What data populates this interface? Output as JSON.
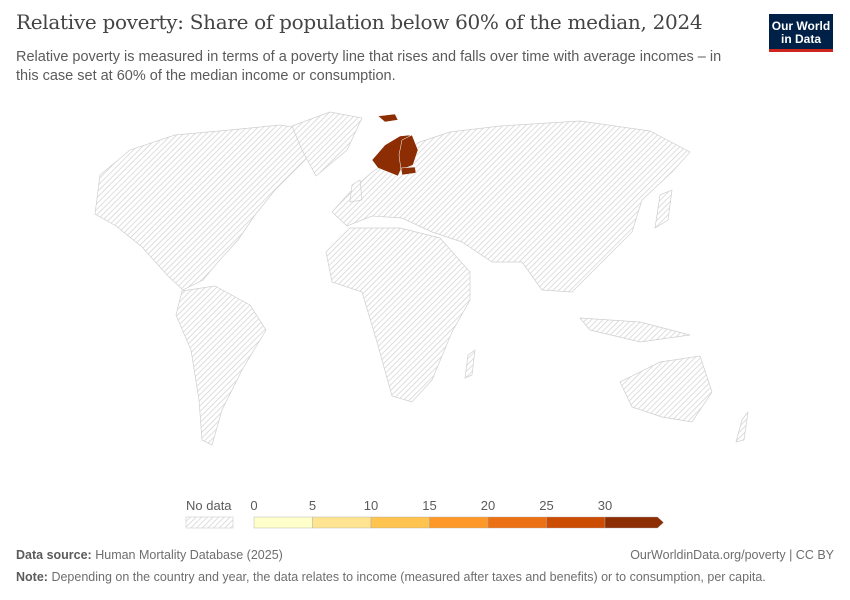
{
  "header": {
    "title": "Relative poverty: Share of population below 60% of the median, 2024",
    "subtitle": "Relative poverty is measured in terms of a poverty line that rises and falls over time with average incomes – in this case set at 60% of the median income or consumption."
  },
  "logo": {
    "text": "Our World in Data",
    "bg": "#002147",
    "accent": "#ce261e"
  },
  "map": {
    "highlighted_countries": [
      "Norway",
      "Sweden",
      "Finland",
      "Estonia"
    ],
    "highlight_color": "#8c2d04",
    "no_data_style": "hatched"
  },
  "legend": {
    "no_data_label": "No data",
    "ticks": [
      "0",
      "5",
      "10",
      "15",
      "20",
      "25",
      "30"
    ],
    "bins": [
      "#ffffcc",
      "#fee391",
      "#fec44f",
      "#fe9929",
      "#ec7014",
      "#cc4c02",
      "#8c2d04"
    ]
  },
  "footer": {
    "source_label": "Data source:",
    "source": "Human Mortality Database (2025)",
    "url": "OurWorldinData.org/poverty | CC BY",
    "note_label": "Note:",
    "note": "Depending on the country and year, the data relates to income (measured after taxes and benefits) or to consumption, per capita."
  }
}
